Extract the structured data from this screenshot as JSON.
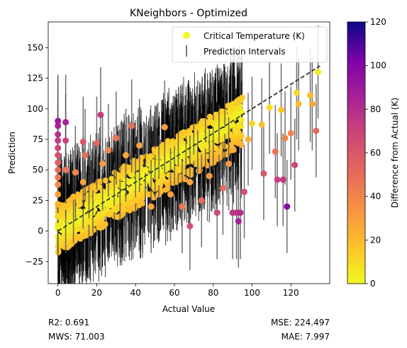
{
  "chart_data": {
    "type": "scatter",
    "title": "KNeighbors - Optimized",
    "xlabel": "Actual Value",
    "ylabel": "Prediction",
    "xlim": [
      -5,
      140
    ],
    "ylim": [
      -43,
      171
    ],
    "x_ticks": [
      0,
      20,
      40,
      60,
      80,
      100,
      120
    ],
    "y_ticks": [
      -25,
      0,
      25,
      50,
      75,
      100,
      125,
      150
    ],
    "grid": false,
    "legend": {
      "placement": "top-right",
      "entries": [
        "Critical Temperature (K)",
        "Prediction Intervals"
      ]
    },
    "colorbar": {
      "label": "Difference from Actual (K)",
      "range": [
        0,
        120
      ],
      "ticks": [
        0,
        20,
        40,
        60,
        80,
        100,
        120
      ],
      "colormap": "plasma_r"
    },
    "reference_line": {
      "from": [
        0,
        0
      ],
      "to": [
        135,
        135
      ],
      "style": "dashed",
      "color": "#333333"
    },
    "points": [
      {
        "x": 0,
        "y": 90,
        "lo": 50,
        "hi": 128
      },
      {
        "x": 0,
        "y": 86,
        "lo": 48,
        "hi": 126
      },
      {
        "x": 0,
        "y": 79,
        "lo": 40,
        "hi": 118
      },
      {
        "x": 0,
        "y": 74,
        "lo": 35,
        "hi": 112
      },
      {
        "x": 0,
        "y": 68,
        "lo": 30,
        "hi": 106
      },
      {
        "x": 0,
        "y": 62,
        "lo": 25,
        "hi": 100
      },
      {
        "x": 0,
        "y": 56,
        "lo": 18,
        "hi": 94
      },
      {
        "x": 0,
        "y": 50,
        "lo": 12,
        "hi": 88
      },
      {
        "x": 0,
        "y": 44,
        "lo": 6,
        "hi": 82
      },
      {
        "x": 0,
        "y": 38,
        "lo": 0,
        "hi": 76
      },
      {
        "x": 0,
        "y": 30,
        "lo": -8,
        "hi": 68
      },
      {
        "x": 0,
        "y": 22,
        "lo": -16,
        "hi": 60
      },
      {
        "x": 0,
        "y": 12,
        "lo": -26,
        "hi": 50
      },
      {
        "x": 0,
        "y": 4,
        "lo": -33,
        "hi": 42
      },
      {
        "x": 4,
        "y": 89,
        "lo": 50,
        "hi": 128
      },
      {
        "x": 4,
        "y": 74,
        "lo": 36,
        "hi": 112
      },
      {
        "x": 4,
        "y": 50,
        "lo": 12,
        "hi": 88
      },
      {
        "x": 4,
        "y": 20,
        "lo": -18,
        "hi": 58
      },
      {
        "x": 8,
        "y": 28,
        "lo": -10,
        "hi": 66
      },
      {
        "x": 9,
        "y": 48,
        "lo": 10,
        "hi": 86
      },
      {
        "x": 13,
        "y": 73,
        "lo": 35,
        "hi": 110
      },
      {
        "x": 13,
        "y": 40,
        "lo": 2,
        "hi": 78
      },
      {
        "x": 14,
        "y": 62,
        "lo": 24,
        "hi": 100
      },
      {
        "x": 16,
        "y": 8,
        "lo": -30,
        "hi": 46
      },
      {
        "x": 18,
        "y": 36,
        "lo": -2,
        "hi": 74
      },
      {
        "x": 20,
        "y": 72,
        "lo": 34,
        "hi": 110
      },
      {
        "x": 22,
        "y": 95,
        "lo": 56,
        "hi": 134
      },
      {
        "x": 23,
        "y": 55,
        "lo": 17,
        "hi": 93
      },
      {
        "x": 26,
        "y": 66,
        "lo": 28,
        "hi": 104
      },
      {
        "x": 29,
        "y": 18,
        "lo": -20,
        "hi": 56
      },
      {
        "x": 30,
        "y": 76,
        "lo": 38,
        "hi": 114
      },
      {
        "x": 32,
        "y": 45,
        "lo": 7,
        "hi": 83
      },
      {
        "x": 35,
        "y": 62,
        "lo": 24,
        "hi": 100
      },
      {
        "x": 38,
        "y": 86,
        "lo": 48,
        "hi": 124
      },
      {
        "x": 40,
        "y": 25,
        "lo": -13,
        "hi": 63
      },
      {
        "x": 42,
        "y": 70,
        "lo": 32,
        "hi": 108
      },
      {
        "x": 45,
        "y": 50,
        "lo": 12,
        "hi": 88
      },
      {
        "x": 48,
        "y": 20,
        "lo": -18,
        "hi": 58
      },
      {
        "x": 50,
        "y": 65,
        "lo": 27,
        "hi": 103
      },
      {
        "x": 52,
        "y": 40,
        "lo": 2,
        "hi": 78
      },
      {
        "x": 55,
        "y": 85,
        "lo": 47,
        "hi": 123
      },
      {
        "x": 58,
        "y": 30,
        "lo": -8,
        "hi": 68
      },
      {
        "x": 60,
        "y": 72,
        "lo": 34,
        "hi": 110
      },
      {
        "x": 62,
        "y": 50,
        "lo": 12,
        "hi": 88
      },
      {
        "x": 64,
        "y": 20,
        "lo": -18,
        "hi": 58
      },
      {
        "x": 66,
        "y": 80,
        "lo": 42,
        "hi": 118
      },
      {
        "x": 68,
        "y": 4,
        "lo": -32,
        "hi": 42
      },
      {
        "x": 68,
        "y": 40,
        "lo": 2,
        "hi": 78
      },
      {
        "x": 70,
        "y": 60,
        "lo": 22,
        "hi": 98
      },
      {
        "x": 72,
        "y": 85,
        "lo": 47,
        "hi": 123
      },
      {
        "x": 74,
        "y": 25,
        "lo": -13,
        "hi": 63
      },
      {
        "x": 76,
        "y": 70,
        "lo": 32,
        "hi": 108
      },
      {
        "x": 78,
        "y": 45,
        "lo": 7,
        "hi": 83
      },
      {
        "x": 80,
        "y": 88,
        "lo": 50,
        "hi": 126
      },
      {
        "x": 82,
        "y": 15,
        "lo": -23,
        "hi": 53
      },
      {
        "x": 83,
        "y": 65,
        "lo": 27,
        "hi": 103
      },
      {
        "x": 85,
        "y": 35,
        "lo": -3,
        "hi": 73
      },
      {
        "x": 86,
        "y": 82,
        "lo": 44,
        "hi": 120
      },
      {
        "x": 88,
        "y": 55,
        "lo": 17,
        "hi": 93
      },
      {
        "x": 90,
        "y": 15,
        "lo": -23,
        "hi": 53
      },
      {
        "x": 92,
        "y": 15,
        "lo": -23,
        "hi": 53
      },
      {
        "x": 93,
        "y": 8,
        "lo": -30,
        "hi": 46
      },
      {
        "x": 94,
        "y": 15,
        "lo": -23,
        "hi": 53
      },
      {
        "x": 96,
        "y": 32,
        "lo": -6,
        "hi": 70
      },
      {
        "x": 98,
        "y": 75,
        "lo": 37,
        "hi": 113
      },
      {
        "x": 100,
        "y": 88,
        "lo": 50,
        "hi": 126
      },
      {
        "x": 105,
        "y": 87,
        "lo": 49,
        "hi": 125
      },
      {
        "x": 106,
        "y": 47,
        "lo": 9,
        "hi": 85
      },
      {
        "x": 109,
        "y": 101,
        "lo": 63,
        "hi": 139
      },
      {
        "x": 112,
        "y": 65,
        "lo": 27,
        "hi": 103
      },
      {
        "x": 113,
        "y": 42,
        "lo": 4,
        "hi": 80
      },
      {
        "x": 115,
        "y": 99,
        "lo": 61,
        "hi": 137
      },
      {
        "x": 116,
        "y": 42,
        "lo": 4,
        "hi": 80
      },
      {
        "x": 117,
        "y": 76,
        "lo": 38,
        "hi": 114
      },
      {
        "x": 118,
        "y": 20,
        "lo": -18,
        "hi": 58
      },
      {
        "x": 120,
        "y": 80,
        "lo": 42,
        "hi": 118
      },
      {
        "x": 122,
        "y": 54,
        "lo": 16,
        "hi": 92
      },
      {
        "x": 123,
        "y": 113,
        "lo": 75,
        "hi": 151
      },
      {
        "x": 124,
        "y": 104,
        "lo": 66,
        "hi": 142
      },
      {
        "x": 130,
        "y": 111,
        "lo": 73,
        "hi": 149
      },
      {
        "x": 131,
        "y": 104,
        "lo": 66,
        "hi": 142
      },
      {
        "x": 133,
        "y": 82,
        "lo": 44,
        "hi": 120
      },
      {
        "x": 134,
        "y": 130,
        "lo": 92,
        "hi": 168
      }
    ],
    "dense_band": {
      "description_free": true,
      "x_range": [
        0,
        95
      ],
      "prediction_spread": 20,
      "interval_halfwidth": 38
    }
  },
  "metrics": {
    "r2": "R2: 0.691",
    "mse": "MSE: 224.497",
    "mws": "MWS: 71.003",
    "mae": "MAE: 7.997"
  }
}
